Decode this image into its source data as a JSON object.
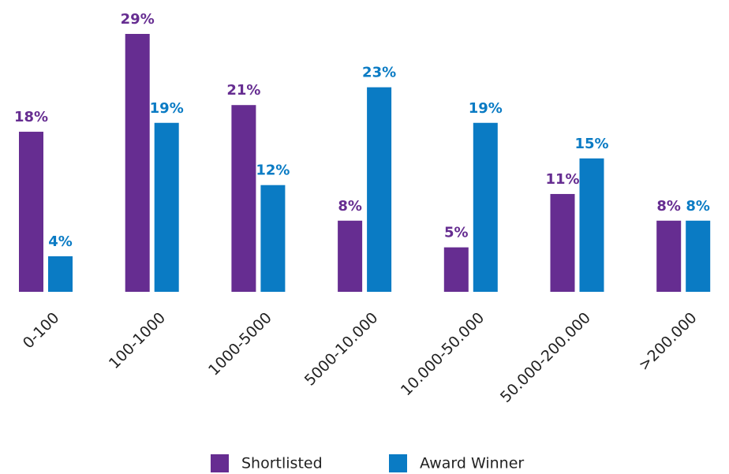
{
  "chart_data": {
    "type": "bar",
    "categories": [
      "0-100",
      "100-1000",
      "1000-5000",
      "5000-10.000",
      "10.000-50.000",
      "50.000-200.000",
      ">200.000"
    ],
    "series": [
      {
        "name": "Shortlisted",
        "color": "#662d91",
        "values": [
          18,
          29,
          21,
          8,
          5,
          11,
          8
        ],
        "value_labels": [
          "18%",
          "29%",
          "21%",
          "8%",
          "5%",
          "11%",
          "8%"
        ]
      },
      {
        "name": "Award Winner",
        "color": "#0a7bc4",
        "values": [
          4,
          19,
          12,
          23,
          19,
          15,
          8
        ],
        "value_labels": [
          "4%",
          "19%",
          "12%",
          "23%",
          "19%",
          "15%",
          "8%"
        ]
      }
    ]
  }
}
